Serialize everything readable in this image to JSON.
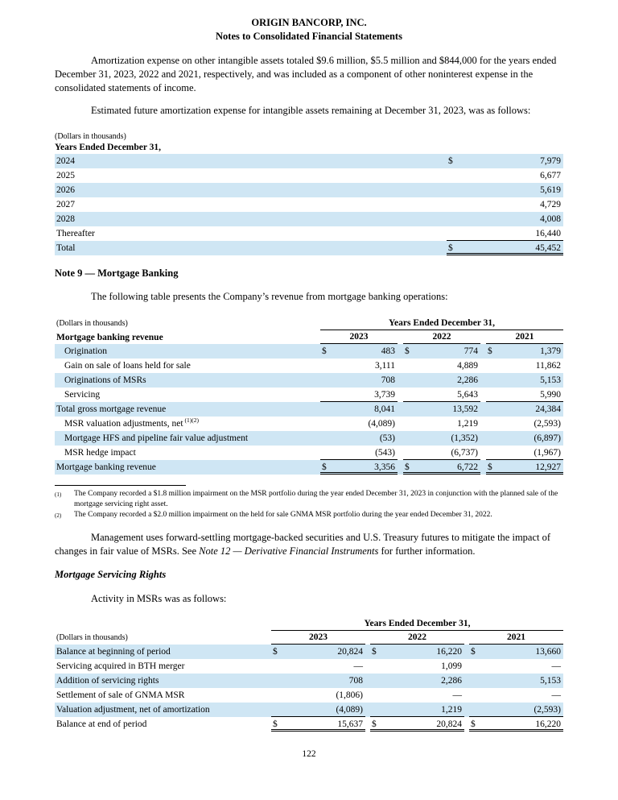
{
  "header": {
    "company": "ORIGIN BANCORP, INC.",
    "subtitle": "Notes to Consolidated Financial Statements"
  },
  "page": {
    "number": "122"
  },
  "paragraphs": {
    "amortization": "Amortization expense on other intangible assets totaled $9.6 million, $5.5 million and $844,000 for the years ended December 31, 2023, 2022 and 2021, respectively, and was included as a component of other noninterest expense in the consolidated statements of income.",
    "estimated": "Estimated future amortization expense for intangible assets remaining at December 31, 2023, was as follows:",
    "note9_heading": "Note 9 — Mortgage Banking",
    "note9_intro": "The following table presents the Company’s revenue from mortgage banking operations:",
    "management_pre": "Management uses forward-settling mortgage-backed securities and U.S. Treasury futures to mitigate the impact of changes in fair value of MSRs. See ",
    "management_italic": "Note 12 — Derivative Financial Instruments",
    "management_post": " for further information.",
    "msr_heading": "Mortgage Servicing Rights",
    "msr_intro": "Activity in MSRs was as follows:"
  },
  "amortization_table": {
    "dollars_note": "(Dollars in thousands)",
    "caption": "Years Ended December 31,",
    "rows": [
      {
        "label": "2024",
        "dollar": true,
        "values": [
          "7,979"
        ],
        "shaded": true,
        "border": ""
      },
      {
        "label": "2025",
        "dollar": false,
        "values": [
          "6,677"
        ],
        "shaded": false,
        "border": ""
      },
      {
        "label": "2026",
        "dollar": false,
        "values": [
          "5,619"
        ],
        "shaded": true,
        "border": ""
      },
      {
        "label": "2027",
        "dollar": false,
        "values": [
          "4,729"
        ],
        "shaded": false,
        "border": ""
      },
      {
        "label": "2028",
        "dollar": false,
        "values": [
          "4,008"
        ],
        "shaded": true,
        "border": ""
      },
      {
        "label": "Thereafter",
        "dollar": false,
        "values": [
          "16,440"
        ],
        "shaded": false,
        "border": "single"
      },
      {
        "label": "Total",
        "dollar": true,
        "values": [
          "45,452"
        ],
        "shaded": true,
        "border": "double"
      }
    ]
  },
  "mortgage_table": {
    "dollars_note": "(Dollars in thousands)",
    "span_header": "Years Ended December 31,",
    "row_header": "Mortgage banking revenue",
    "years": [
      "2023",
      "2022",
      "2021"
    ],
    "rows": [
      {
        "label": "Origination",
        "indent": true,
        "shaded": true,
        "dollar": true,
        "border": "",
        "values": [
          "483",
          "774",
          "1,379"
        ]
      },
      {
        "label": "Gain on sale of loans held for sale",
        "indent": true,
        "shaded": false,
        "dollar": false,
        "border": "",
        "values": [
          "3,111",
          "4,889",
          "11,862"
        ]
      },
      {
        "label": "Originations of MSRs",
        "indent": true,
        "shaded": true,
        "dollar": false,
        "border": "",
        "values": [
          "708",
          "2,286",
          "5,153"
        ]
      },
      {
        "label": "Servicing",
        "indent": true,
        "shaded": false,
        "dollar": false,
        "border": "single",
        "values": [
          "3,739",
          "5,643",
          "5,990"
        ]
      },
      {
        "label": "Total gross mortgage revenue",
        "indent": false,
        "shaded": true,
        "dollar": false,
        "border": "",
        "values": [
          "8,041",
          "13,592",
          "24,384"
        ]
      },
      {
        "label": "MSR valuation adjustments, net",
        "sup": "(1)(2)",
        "indent": true,
        "shaded": false,
        "dollar": false,
        "border": "",
        "values": [
          "(4,089)",
          "1,219",
          "(2,593)"
        ]
      },
      {
        "label": "Mortgage HFS and pipeline fair value adjustment",
        "indent": true,
        "shaded": true,
        "dollar": false,
        "border": "",
        "values": [
          "(53)",
          "(1,352)",
          "(6,897)"
        ]
      },
      {
        "label": "MSR hedge impact",
        "indent": true,
        "shaded": false,
        "dollar": false,
        "border": "single",
        "values": [
          "(543)",
          "(6,737)",
          "(1,967)"
        ]
      },
      {
        "label": "Mortgage banking revenue",
        "indent": false,
        "shaded": true,
        "dollar": true,
        "border": "double",
        "values": [
          "3,356",
          "6,722",
          "12,927"
        ]
      }
    ]
  },
  "footnotes": [
    {
      "marker": "(1)",
      "text": "The Company recorded a $1.8 million impairment on the MSR portfolio during the year ended December 31, 2023 in conjunction with the planned sale of the mortgage servicing right asset."
    },
    {
      "marker": "(2)",
      "text": "The Company recorded a $2.0 million impairment on the held for sale GNMA MSR portfolio during the year ended December 31, 2022."
    }
  ],
  "msr_table": {
    "dollars_note": "(Dollars in thousands)",
    "span_header": "Years Ended December 31,",
    "years": [
      "2023",
      "2022",
      "2021"
    ],
    "rows": [
      {
        "label": "Balance at beginning of period",
        "indent": false,
        "shaded": true,
        "dollar": true,
        "border": "",
        "values": [
          "20,824",
          "16,220",
          "13,660"
        ]
      },
      {
        "label": "Servicing acquired in BTH merger",
        "indent": false,
        "shaded": false,
        "dollar": false,
        "border": "",
        "values": [
          "—",
          "1,099",
          "—"
        ]
      },
      {
        "label": "Addition of servicing rights",
        "indent": false,
        "shaded": true,
        "dollar": false,
        "border": "",
        "values": [
          "708",
          "2,286",
          "5,153"
        ]
      },
      {
        "label": "Settlement of sale of GNMA MSR",
        "indent": false,
        "shaded": false,
        "dollar": false,
        "border": "",
        "values": [
          "(1,806)",
          "—",
          "—"
        ]
      },
      {
        "label": "Valuation adjustment, net of amortization",
        "indent": false,
        "shaded": true,
        "dollar": false,
        "border": "single",
        "values": [
          "(4,089)",
          "1,219",
          "(2,593)"
        ]
      },
      {
        "label": "Balance at end of period",
        "indent": false,
        "shaded": false,
        "dollar": true,
        "border": "double",
        "values": [
          "15,637",
          "20,824",
          "16,220"
        ]
      }
    ]
  }
}
